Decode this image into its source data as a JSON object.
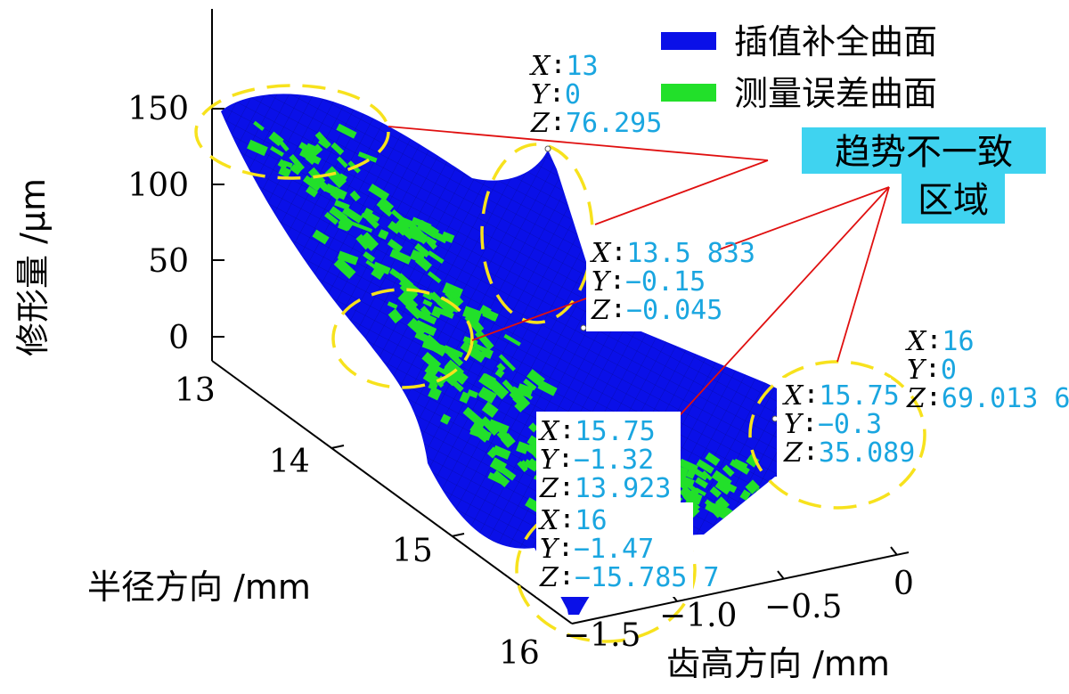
{
  "chart_data": {
    "type": "surface3d",
    "zlabel": "修形量 /μm",
    "xlabel": "半径方向 /mm",
    "ylabel": "齿高方向 /mm",
    "z_ticks": [
      "150",
      "100",
      "50",
      "0"
    ],
    "x_ticks": [
      "13",
      "14",
      "15",
      "16"
    ],
    "y_ticks": [
      "0",
      "−0.5",
      "−1.0",
      "−1.5"
    ],
    "zlim": [
      -20,
      160
    ],
    "xlim": [
      13,
      16
    ],
    "ylim": [
      -1.5,
      0
    ],
    "legend_position": "top-right",
    "series": [
      {
        "name": "插值补全曲面",
        "color": "#0a10e8"
      },
      {
        "name": "测量误差曲面",
        "color": "#22e02a"
      }
    ],
    "annotation": {
      "text_line1": "趋势不一致",
      "text_line2": "区域",
      "background": "#3fd3f0"
    },
    "datatips": [
      {
        "x": "13",
        "y": "0",
        "z": "76.295"
      },
      {
        "x": "13.5 833",
        "y": "−0.15",
        "z": "−0.045"
      },
      {
        "x": "16",
        "y": "0",
        "z": "69.013 6"
      },
      {
        "x": "15.75",
        "y": "−0.3",
        "z": "35.089"
      },
      {
        "x": "15.75",
        "y": "−1.32",
        "z": "13.923"
      },
      {
        "x": "16",
        "y": "−1.47",
        "z": "−15.785 7"
      }
    ],
    "datatip_labels": {
      "x": "X",
      "y": "Y",
      "z": "Z",
      "sep": "∶"
    }
  },
  "colors": {
    "surface": "#0a10e8",
    "measured": "#22e02a",
    "datatip_value": "#1aa6e0",
    "ellipse": "#f7e21d",
    "leader": "#e01010"
  }
}
